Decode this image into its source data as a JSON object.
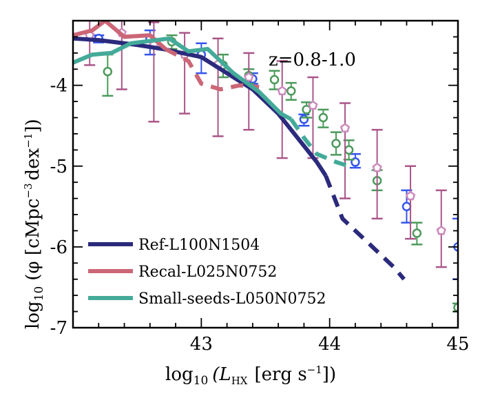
{
  "chart_data": {
    "type": "line",
    "annotation": "z=0.8-1.0",
    "xlabel_prefix": "log",
    "xlabel_sub": "10",
    "xlabel_main": "(L",
    "xlabel_main_sub": "HX",
    "xlabel_units": "[erg s",
    "xlabel_units_sup": "−1",
    "xlabel_close": "])",
    "ylabel_prefix": "log",
    "ylabel_sub": "10",
    "ylabel_main": "(φ [cMpc",
    "ylabel_sup1": "−3",
    "ylabel_mid": "dex",
    "ylabel_sup2": "−1",
    "ylabel_close": "])",
    "xlim": [
      42.0,
      45.0
    ],
    "ylim": [
      -7.0,
      -3.2
    ],
    "xticks": [
      {
        "value": 43,
        "label": "43"
      },
      {
        "value": 44,
        "label": "44"
      },
      {
        "value": 45,
        "label": "45"
      }
    ],
    "yticks": [
      {
        "value": -7,
        "label": "-7"
      },
      {
        "value": -6,
        "label": "-6"
      },
      {
        "value": -5,
        "label": "-5"
      },
      {
        "value": -4,
        "label": "-4"
      }
    ],
    "legend_position": "bottom-left",
    "series": [
      {
        "name": "Ref-L100N1504",
        "color": "#2b2a7c",
        "solid": [
          [
            42.0,
            -3.42
          ],
          [
            42.2,
            -3.44
          ],
          [
            42.5,
            -3.5
          ],
          [
            42.7,
            -3.55
          ],
          [
            43.0,
            -3.65
          ],
          [
            43.2,
            -3.85
          ],
          [
            43.4,
            -4.05
          ],
          [
            43.6,
            -4.35
          ],
          [
            43.8,
            -4.75
          ],
          [
            43.9,
            -4.95
          ],
          [
            43.97,
            -5.12
          ]
        ],
        "dashed": [
          [
            43.97,
            -5.12
          ],
          [
            44.1,
            -5.65
          ],
          [
            44.3,
            -5.95
          ],
          [
            44.5,
            -6.25
          ],
          [
            44.58,
            -6.4
          ]
        ]
      },
      {
        "name": "Recal-L025N0752",
        "color": "#cc6677",
        "solid": [
          [
            42.0,
            -3.38
          ],
          [
            42.15,
            -3.32
          ],
          [
            42.25,
            -3.2
          ],
          [
            42.4,
            -3.4
          ],
          [
            42.6,
            -3.38
          ],
          [
            42.72,
            -3.55
          ]
        ],
        "dashed": [
          [
            42.72,
            -3.55
          ],
          [
            42.9,
            -3.7
          ],
          [
            43.0,
            -3.98
          ],
          [
            43.15,
            -4.05
          ],
          [
            43.3,
            -4.0
          ],
          [
            43.45,
            -4.02
          ]
        ]
      },
      {
        "name": "Small-seeds-L050N0752",
        "color": "#44aa99",
        "solid": [
          [
            42.0,
            -3.72
          ],
          [
            42.15,
            -3.62
          ],
          [
            42.3,
            -3.6
          ],
          [
            42.45,
            -3.48
          ],
          [
            42.6,
            -3.45
          ],
          [
            42.75,
            -3.42
          ],
          [
            42.9,
            -3.58
          ],
          [
            43.05,
            -3.55
          ],
          [
            43.25,
            -3.85
          ],
          [
            43.45,
            -4.08
          ],
          [
            43.62,
            -4.35
          ],
          [
            43.7,
            -4.42
          ]
        ],
        "dashed": [
          [
            43.7,
            -4.42
          ],
          [
            43.8,
            -4.65
          ],
          [
            43.9,
            -4.85
          ],
          [
            44.05,
            -4.95
          ],
          [
            44.15,
            -5.0
          ]
        ]
      }
    ],
    "observations": [
      {
        "name": "obs-blue",
        "color": "#3355ee",
        "marker": "circle",
        "points": [
          {
            "x": 42.2,
            "y": -3.42,
            "lo": -3.47,
            "hi": -3.38
          },
          {
            "x": 42.6,
            "y": -3.42,
            "lo": -3.62,
            "hi": -3.32
          },
          {
            "x": 43.0,
            "y": -3.62,
            "lo": -3.85,
            "hi": -3.48
          },
          {
            "x": 43.4,
            "y": -3.92,
            "lo": -3.98,
            "hi": -3.85
          },
          {
            "x": 43.8,
            "y": -4.42,
            "lo": -4.5,
            "hi": -4.36
          },
          {
            "x": 44.2,
            "y": -4.95,
            "lo": -5.02,
            "hi": -4.85
          },
          {
            "x": 44.6,
            "y": -5.5,
            "lo": -5.7,
            "hi": -5.3
          },
          {
            "x": 45.0,
            "y": -6.0,
            "lo": -6.4,
            "hi": -5.65
          }
        ]
      },
      {
        "name": "obs-green",
        "color": "#4a9a5a",
        "marker": "circle",
        "points": [
          {
            "x": 42.27,
            "y": -3.83,
            "lo": -4.13,
            "hi": -3.62
          },
          {
            "x": 42.77,
            "y": -3.46,
            "lo": -3.55,
            "hi": -3.38
          },
          {
            "x": 43.17,
            "y": -3.75,
            "lo": -3.9,
            "hi": -3.62
          },
          {
            "x": 43.37,
            "y": -3.88,
            "lo": -3.98,
            "hi": -3.8
          },
          {
            "x": 43.57,
            "y": -3.93,
            "lo": -4.05,
            "hi": -3.82
          },
          {
            "x": 43.7,
            "y": -4.07,
            "lo": -4.18,
            "hi": -3.97
          },
          {
            "x": 43.82,
            "y": -4.3,
            "lo": -4.4,
            "hi": -4.21
          },
          {
            "x": 43.95,
            "y": -4.4,
            "lo": -4.52,
            "hi": -4.3
          },
          {
            "x": 44.05,
            "y": -4.72,
            "lo": -4.86,
            "hi": -4.58
          },
          {
            "x": 44.15,
            "y": -4.8,
            "lo": -4.92,
            "hi": -4.68
          },
          {
            "x": 44.37,
            "y": -5.18,
            "lo": -5.3,
            "hi": -5.05
          },
          {
            "x": 44.68,
            "y": -5.83,
            "lo": -5.97,
            "hi": -5.7
          },
          {
            "x": 45.0,
            "y": -6.75,
            "lo": -6.8,
            "hi": -6.7
          }
        ]
      },
      {
        "name": "obs-violet",
        "color": "#aa5588",
        "marker": "pentagon",
        "points": [
          {
            "x": 42.13,
            "y": -3.38,
            "lo": -3.75,
            "hi": -3.1
          },
          {
            "x": 42.38,
            "y": -3.35,
            "lo": -4.05,
            "hi": -3.05
          },
          {
            "x": 42.63,
            "y": -3.5,
            "lo": -4.45,
            "hi": -3.22
          },
          {
            "x": 42.87,
            "y": -3.62,
            "lo": -4.35,
            "hi": -3.35
          },
          {
            "x": 43.13,
            "y": -3.74,
            "lo": -4.63,
            "hi": -3.42
          },
          {
            "x": 43.37,
            "y": -3.9,
            "lo": -4.55,
            "hi": -3.6
          },
          {
            "x": 43.63,
            "y": -4.07,
            "lo": -4.9,
            "hi": -3.7
          },
          {
            "x": 43.87,
            "y": -4.25,
            "lo": -4.9,
            "hi": -3.9
          },
          {
            "x": 44.12,
            "y": -4.53,
            "lo": -5.4,
            "hi": -4.22
          },
          {
            "x": 44.37,
            "y": -5.02,
            "lo": -5.65,
            "hi": -4.55
          },
          {
            "x": 44.63,
            "y": -5.37,
            "lo": -5.9,
            "hi": -5.0
          },
          {
            "x": 44.87,
            "y": -5.8,
            "lo": -6.25,
            "hi": -5.3
          }
        ]
      }
    ]
  }
}
